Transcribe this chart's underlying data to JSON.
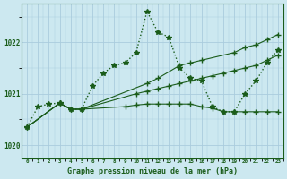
{
  "title": "Graphe pression niveau de la mer (hPa)",
  "bg_color": "#cce8f0",
  "grid_color": "#aaccdd",
  "line_color": "#1a5c1a",
  "xlim_min": -0.5,
  "xlim_max": 23.5,
  "ylim_min": 1019.75,
  "ylim_max": 1022.75,
  "yticks": [
    1020,
    1021,
    1022
  ],
  "xticks": [
    0,
    1,
    2,
    3,
    4,
    5,
    6,
    7,
    8,
    9,
    10,
    11,
    12,
    13,
    14,
    15,
    16,
    17,
    18,
    19,
    20,
    21,
    22,
    23
  ],
  "series": [
    {
      "x": [
        0,
        1,
        2,
        3,
        4,
        5,
        6,
        7,
        8,
        9,
        10,
        11,
        12,
        13,
        14,
        15,
        16,
        17,
        18,
        19,
        20,
        21,
        22,
        23
      ],
      "y": [
        1020.35,
        1020.75,
        1020.8,
        1020.82,
        1020.7,
        1020.7,
        1021.15,
        1021.4,
        1021.55,
        1021.6,
        1021.8,
        1022.6,
        1022.2,
        1022.1,
        1021.5,
        1021.3,
        1021.25,
        1020.75,
        1020.65,
        1020.65,
        1021.0,
        1021.25,
        1021.6,
        1021.85
      ],
      "linestyle": "dotted",
      "marker": "*",
      "markersize": 4,
      "linewidth": 1.0
    },
    {
      "x": [
        0,
        3,
        4,
        5,
        11,
        12,
        14,
        15,
        16,
        19,
        20,
        21,
        22,
        23
      ],
      "y": [
        1020.35,
        1020.82,
        1020.7,
        1020.7,
        1021.2,
        1021.3,
        1021.55,
        1021.6,
        1021.65,
        1021.8,
        1021.9,
        1021.95,
        1022.05,
        1022.15
      ],
      "linestyle": "solid",
      "marker": "+",
      "markersize": 5,
      "linewidth": 0.8
    },
    {
      "x": [
        0,
        3,
        4,
        5,
        10,
        11,
        12,
        13,
        14,
        15,
        16,
        17,
        18,
        19,
        20,
        21,
        22,
        23
      ],
      "y": [
        1020.35,
        1020.82,
        1020.7,
        1020.7,
        1021.0,
        1021.05,
        1021.1,
        1021.15,
        1021.2,
        1021.25,
        1021.3,
        1021.35,
        1021.4,
        1021.45,
        1021.5,
        1021.55,
        1021.65,
        1021.75
      ],
      "linestyle": "solid",
      "marker": "+",
      "markersize": 4,
      "linewidth": 0.8
    },
    {
      "x": [
        0,
        3,
        4,
        5,
        9,
        10,
        11,
        12,
        13,
        14,
        15,
        16,
        17,
        18,
        19,
        20,
        21,
        22,
        23
      ],
      "y": [
        1020.35,
        1020.82,
        1020.7,
        1020.7,
        1020.75,
        1020.78,
        1020.8,
        1020.8,
        1020.8,
        1020.8,
        1020.8,
        1020.75,
        1020.72,
        1020.65,
        1020.65,
        1020.65,
        1020.65,
        1020.65,
        1020.65
      ],
      "linestyle": "solid",
      "marker": "+",
      "markersize": 4,
      "linewidth": 0.8
    }
  ]
}
